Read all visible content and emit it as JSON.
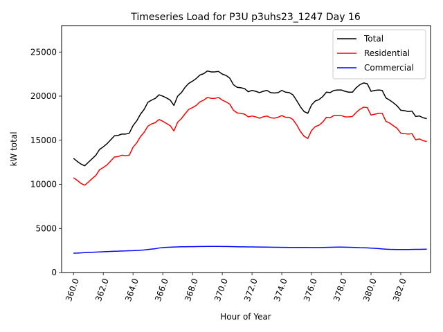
{
  "chart_data": {
    "type": "line",
    "title": "Timeseries Load for P3U p3uhs23_1247  Day 16",
    "xlabel": "Hour of Year",
    "ylabel": "kW total",
    "xlim": [
      359.2,
      384.0
    ],
    "ylim": [
      0,
      28000
    ],
    "xticks": [
      360,
      362,
      364,
      366,
      368,
      370,
      372,
      374,
      376,
      378,
      380,
      382
    ],
    "xtick_labels": [
      "360.0",
      "362.0",
      "364.0",
      "366.0",
      "368.0",
      "370.0",
      "372.0",
      "374.0",
      "376.0",
      "378.0",
      "380.0",
      "382.0"
    ],
    "yticks": [
      0,
      5000,
      10000,
      15000,
      20000,
      25000
    ],
    "ytick_labels": [
      "0",
      "5000",
      "10000",
      "15000",
      "20000",
      "25000"
    ],
    "grid": false,
    "legend_position": "top-right",
    "x": [
      360.0,
      360.25,
      360.5,
      360.75,
      361.0,
      361.25,
      361.5,
      361.75,
      362.0,
      362.25,
      362.5,
      362.75,
      363.0,
      363.25,
      363.5,
      363.75,
      364.0,
      364.25,
      364.5,
      364.75,
      365.0,
      365.25,
      365.5,
      365.75,
      366.0,
      366.25,
      366.5,
      366.75,
      367.0,
      367.25,
      367.5,
      367.75,
      368.0,
      368.25,
      368.5,
      368.75,
      369.0,
      369.25,
      369.5,
      369.75,
      370.0,
      370.25,
      370.5,
      370.75,
      371.0,
      371.25,
      371.5,
      371.75,
      372.0,
      372.25,
      372.5,
      372.75,
      373.0,
      373.25,
      373.5,
      373.75,
      374.0,
      374.25,
      374.5,
      374.75,
      375.0,
      375.25,
      375.5,
      375.75,
      376.0,
      376.25,
      376.5,
      376.75,
      377.0,
      377.25,
      377.5,
      377.75,
      378.0,
      378.25,
      378.5,
      378.75,
      379.0,
      379.25,
      379.5,
      379.75,
      380.0,
      380.25,
      380.5,
      380.75,
      381.0,
      381.25,
      381.5,
      381.75,
      382.0,
      382.25,
      382.5,
      382.75,
      383.0,
      383.25,
      383.5,
      383.75
    ],
    "series": [
      {
        "name": "Total",
        "color": "#000000",
        "values": [
          12950,
          12600,
          12300,
          12100,
          12500,
          12900,
          13300,
          13950,
          14250,
          14600,
          15050,
          15500,
          15550,
          15700,
          15700,
          15800,
          16650,
          17200,
          17950,
          18500,
          19300,
          19550,
          19750,
          20150,
          20000,
          19800,
          19550,
          18950,
          20000,
          20400,
          21000,
          21450,
          21700,
          22000,
          22400,
          22550,
          22850,
          22750,
          22750,
          22800,
          22500,
          22350,
          22050,
          21300,
          21000,
          20950,
          20850,
          20500,
          20650,
          20550,
          20400,
          20550,
          20650,
          20400,
          20350,
          20400,
          20650,
          20450,
          20400,
          20150,
          19500,
          18800,
          18250,
          18050,
          19000,
          19450,
          19600,
          19950,
          20450,
          20400,
          20650,
          20700,
          20700,
          20550,
          20450,
          20450,
          20950,
          21300,
          21500,
          21400,
          20550,
          20650,
          20700,
          20650,
          19800,
          19550,
          19250,
          18900,
          18400,
          18350,
          18250,
          18300,
          17700,
          17750,
          17550,
          17450
        ]
      },
      {
        "name": "Residential",
        "color": "#ff0000",
        "values": [
          10750,
          10450,
          10100,
          9900,
          10250,
          10650,
          11000,
          11650,
          11900,
          12200,
          12650,
          13100,
          13150,
          13300,
          13250,
          13300,
          14200,
          14700,
          15400,
          15900,
          16600,
          16850,
          17000,
          17350,
          17150,
          16900,
          16650,
          16050,
          17050,
          17450,
          18000,
          18500,
          18700,
          18950,
          19350,
          19550,
          19850,
          19750,
          19750,
          19850,
          19550,
          19350,
          19100,
          18400,
          18100,
          18050,
          17950,
          17650,
          17750,
          17650,
          17500,
          17650,
          17750,
          17550,
          17500,
          17600,
          17800,
          17600,
          17600,
          17350,
          16750,
          16000,
          15450,
          15200,
          16100,
          16550,
          16700,
          17050,
          17600,
          17550,
          17800,
          17800,
          17800,
          17650,
          17650,
          17700,
          18150,
          18500,
          18750,
          18700,
          17850,
          17950,
          18050,
          18050,
          17150,
          16950,
          16650,
          16350,
          15800,
          15750,
          15700,
          15750,
          15050,
          15150,
          14950,
          14850
        ]
      },
      {
        "name": "Commercial",
        "color": "#0000ff",
        "values": [
          2200,
          2210,
          2230,
          2250,
          2270,
          2290,
          2310,
          2330,
          2350,
          2370,
          2390,
          2410,
          2420,
          2440,
          2450,
          2470,
          2480,
          2500,
          2530,
          2560,
          2610,
          2660,
          2700,
          2780,
          2820,
          2850,
          2870,
          2890,
          2900,
          2920,
          2920,
          2930,
          2930,
          2940,
          2950,
          2950,
          2960,
          2960,
          2960,
          2960,
          2950,
          2950,
          2940,
          2930,
          2920,
          2910,
          2910,
          2900,
          2900,
          2890,
          2890,
          2880,
          2880,
          2870,
          2860,
          2860,
          2850,
          2850,
          2840,
          2840,
          2840,
          2840,
          2840,
          2840,
          2830,
          2830,
          2830,
          2830,
          2850,
          2860,
          2870,
          2880,
          2880,
          2870,
          2860,
          2850,
          2830,
          2810,
          2800,
          2790,
          2760,
          2740,
          2720,
          2680,
          2650,
          2630,
          2620,
          2610,
          2610,
          2610,
          2610,
          2620,
          2630,
          2630,
          2640,
          2650
        ]
      }
    ]
  }
}
